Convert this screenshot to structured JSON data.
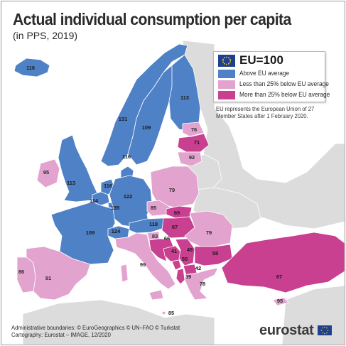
{
  "header": {
    "title": "Actual individual consumption per capita",
    "subtitle": "(in PPS, 2019)"
  },
  "legend": {
    "heading": "EU=100",
    "items": [
      {
        "label": "Above EU average",
        "color": "#4f81c7"
      },
      {
        "label": "Less than 25% below EU average",
        "color": "#e3a3cf"
      },
      {
        "label": "More than 25% below EU average",
        "color": "#c8408f"
      }
    ]
  },
  "note": "EU represents the European Union of 27 Member States after 1 February 2020.",
  "credits": {
    "line1": "Administrative boundaries: © EuroGeographics © UN–FAO © Turkstat",
    "line2": "Cartography: Eurostat – IMAGE, 12/2020"
  },
  "logo": {
    "text": "eurostat"
  },
  "map": {
    "colors": {
      "above": "#4f81c7",
      "less": "#e3a3cf",
      "more": "#c8408f",
      "other": "#dcdcdc",
      "sea": "#ffffff",
      "border": "#ffffff"
    },
    "values": [
      {
        "id": "IS",
        "value": "116",
        "category": "above"
      },
      {
        "id": "NO",
        "value": "131",
        "category": "above"
      },
      {
        "id": "SE",
        "value": "109",
        "category": "above"
      },
      {
        "id": "FI",
        "value": "113",
        "category": "above"
      },
      {
        "id": "DK",
        "value": "116",
        "category": "above"
      },
      {
        "id": "UK",
        "value": "113",
        "category": "above"
      },
      {
        "id": "IE",
        "value": "95",
        "category": "less"
      },
      {
        "id": "NL",
        "value": "116",
        "category": "above"
      },
      {
        "id": "BE",
        "value": "114",
        "category": "above"
      },
      {
        "id": "LU",
        "value": "135",
        "category": "above"
      },
      {
        "id": "DE",
        "value": "122",
        "category": "above"
      },
      {
        "id": "FR",
        "value": "109",
        "category": "above"
      },
      {
        "id": "CH",
        "value": "124",
        "category": "above"
      },
      {
        "id": "AT",
        "value": "118",
        "category": "above"
      },
      {
        "id": "EE",
        "value": "76",
        "category": "less"
      },
      {
        "id": "LV",
        "value": "71",
        "category": "more"
      },
      {
        "id": "LT",
        "value": "92",
        "category": "less"
      },
      {
        "id": "PL",
        "value": "79",
        "category": "less"
      },
      {
        "id": "CZ",
        "value": "85",
        "category": "less"
      },
      {
        "id": "SK",
        "value": "69",
        "category": "more"
      },
      {
        "id": "HU",
        "value": "67",
        "category": "more"
      },
      {
        "id": "RO",
        "value": "79",
        "category": "less"
      },
      {
        "id": "SI",
        "value": "83",
        "category": "less"
      },
      {
        "id": "HR",
        "value": "66",
        "category": "more"
      },
      {
        "id": "BA",
        "value": "41",
        "category": "more"
      },
      {
        "id": "RS",
        "value": "49",
        "category": "more"
      },
      {
        "id": "ME",
        "value": "50",
        "category": "more"
      },
      {
        "id": "AL",
        "value": "39",
        "category": "more"
      },
      {
        "id": "MK",
        "value": "42",
        "category": "more"
      },
      {
        "id": "BG",
        "value": "58",
        "category": "more"
      },
      {
        "id": "GR",
        "value": "78",
        "category": "less"
      },
      {
        "id": "TR",
        "value": "67",
        "category": "more"
      },
      {
        "id": "CY",
        "value": "95",
        "category": "less"
      },
      {
        "id": "IT",
        "value": "99",
        "category": "less"
      },
      {
        "id": "MT",
        "value": "85",
        "category": "less"
      },
      {
        "id": "ES",
        "value": "91",
        "category": "less"
      },
      {
        "id": "PT",
        "value": "86",
        "category": "less"
      }
    ]
  }
}
